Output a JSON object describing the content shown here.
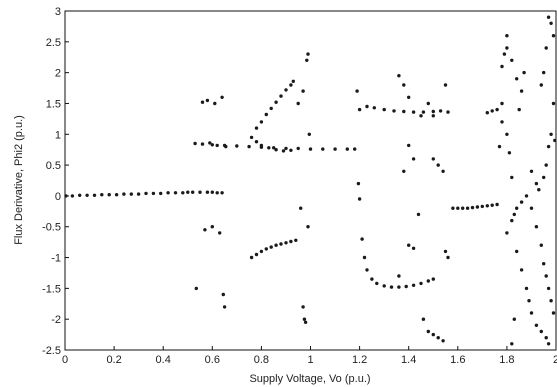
{
  "chart_data": {
    "type": "scatter",
    "title": "",
    "xlabel": "Supply Voltage, Vo (p.u.)",
    "ylabel": "Flux Derivative, Phi2 (p.u.)",
    "xlim": [
      0,
      2
    ],
    "ylim": [
      -2.5,
      3
    ],
    "grid": false,
    "x_ticks": [
      0,
      0.2,
      0.4,
      0.6,
      0.8,
      1,
      1.2,
      1.4,
      1.6,
      1.8,
      2
    ],
    "x_tick_labels": [
      "0",
      "0.2",
      "0.4",
      "0.6",
      "0.8",
      "1",
      "1.2",
      "1.4",
      "1.6",
      "1.8",
      "2"
    ],
    "y_ticks": [
      -2.5,
      -2,
      -1.5,
      -1,
      -0.5,
      0,
      0.5,
      1,
      1.5,
      2,
      2.5,
      3
    ],
    "y_tick_labels": [
      "-2.5",
      "-2",
      "-1.5",
      "-1",
      "-0.5",
      "0",
      "0.5",
      "1",
      "1.5",
      "2",
      "2.5",
      "3"
    ],
    "marker_color": "#1a1a1a",
    "series": [
      {
        "values_note": "",
        "points": [
          [
            0.0,
            0.0
          ],
          [
            0.03,
            0.0
          ],
          [
            0.06,
            0.01
          ],
          [
            0.09,
            0.01
          ],
          [
            0.12,
            0.01
          ],
          [
            0.15,
            0.02
          ],
          [
            0.18,
            0.02
          ],
          [
            0.21,
            0.02
          ],
          [
            0.24,
            0.03
          ],
          [
            0.27,
            0.03
          ],
          [
            0.3,
            0.03
          ],
          [
            0.33,
            0.04
          ],
          [
            0.36,
            0.04
          ],
          [
            0.39,
            0.04
          ],
          [
            0.42,
            0.05
          ],
          [
            0.45,
            0.05
          ],
          [
            0.48,
            0.05
          ],
          [
            0.5,
            0.06
          ],
          [
            0.52,
            0.06
          ],
          [
            0.55,
            0.06
          ],
          [
            0.58,
            0.06
          ],
          [
            0.6,
            0.06
          ],
          [
            0.62,
            0.05
          ],
          [
            0.64,
            0.05
          ],
          [
            0.535,
            -1.5
          ],
          [
            0.56,
            1.52
          ],
          [
            0.57,
            -0.55
          ],
          [
            0.58,
            1.55
          ],
          [
            0.59,
            0.86
          ],
          [
            0.6,
            -0.5
          ],
          [
            0.61,
            1.5
          ],
          [
            0.62,
            0.82
          ],
          [
            0.63,
            -0.6
          ],
          [
            0.64,
            1.6
          ],
          [
            0.645,
            -1.6
          ],
          [
            0.65,
            -1.8
          ],
          [
            0.655,
            0.8
          ],
          [
            0.53,
            0.85
          ],
          [
            0.56,
            0.84
          ],
          [
            0.6,
            0.83
          ],
          [
            0.65,
            0.82
          ],
          [
            0.7,
            0.81
          ],
          [
            0.75,
            0.8
          ],
          [
            0.8,
            0.79
          ],
          [
            0.85,
            0.78
          ],
          [
            0.9,
            0.77
          ],
          [
            0.95,
            0.77
          ],
          [
            1.0,
            0.76
          ],
          [
            1.05,
            0.76
          ],
          [
            1.1,
            0.76
          ],
          [
            1.15,
            0.76
          ],
          [
            1.18,
            0.76
          ],
          [
            0.76,
            0.95
          ],
          [
            0.78,
            1.1
          ],
          [
            0.8,
            1.2
          ],
          [
            0.82,
            1.32
          ],
          [
            0.84,
            1.42
          ],
          [
            0.86,
            1.52
          ],
          [
            0.88,
            1.62
          ],
          [
            0.9,
            1.72
          ],
          [
            0.92,
            1.8
          ],
          [
            0.93,
            1.86
          ],
          [
            0.95,
            1.5
          ],
          [
            0.97,
            1.7
          ],
          [
            0.985,
            2.2
          ],
          [
            0.99,
            2.3
          ],
          [
            0.995,
            1.0
          ],
          [
            0.78,
            0.88
          ],
          [
            0.8,
            0.82
          ],
          [
            0.83,
            0.78
          ],
          [
            0.86,
            0.75
          ],
          [
            0.89,
            0.73
          ],
          [
            0.92,
            0.74
          ],
          [
            0.76,
            -1.0
          ],
          [
            0.78,
            -0.95
          ],
          [
            0.8,
            -0.9
          ],
          [
            0.82,
            -0.86
          ],
          [
            0.84,
            -0.83
          ],
          [
            0.86,
            -0.8
          ],
          [
            0.88,
            -0.78
          ],
          [
            0.9,
            -0.76
          ],
          [
            0.92,
            -0.74
          ],
          [
            0.94,
            -0.72
          ],
          [
            0.96,
            -0.2
          ],
          [
            0.97,
            -1.8
          ],
          [
            0.975,
            -2.0
          ],
          [
            0.98,
            -2.05
          ],
          [
            0.99,
            -0.5
          ],
          [
            1.19,
            1.7
          ],
          [
            1.195,
            0.2
          ],
          [
            1.2,
            -0.05
          ],
          [
            1.21,
            -0.7
          ],
          [
            1.22,
            -1.0
          ],
          [
            1.23,
            -1.2
          ],
          [
            1.25,
            -1.35
          ],
          [
            1.27,
            -1.42
          ],
          [
            1.3,
            -1.46
          ],
          [
            1.33,
            -1.48
          ],
          [
            1.36,
            -1.48
          ],
          [
            1.39,
            -1.47
          ],
          [
            1.42,
            -1.45
          ],
          [
            1.45,
            -1.42
          ],
          [
            1.48,
            -1.38
          ],
          [
            1.5,
            -1.35
          ],
          [
            1.2,
            1.4
          ],
          [
            1.23,
            1.45
          ],
          [
            1.26,
            1.43
          ],
          [
            1.3,
            1.4
          ],
          [
            1.34,
            1.38
          ],
          [
            1.38,
            1.37
          ],
          [
            1.42,
            1.36
          ],
          [
            1.46,
            1.36
          ],
          [
            1.5,
            1.37
          ],
          [
            1.53,
            1.38
          ],
          [
            1.56,
            1.36
          ],
          [
            1.36,
            1.95
          ],
          [
            1.38,
            1.8
          ],
          [
            1.4,
            1.6
          ],
          [
            1.4,
            0.82
          ],
          [
            1.42,
            0.6
          ],
          [
            1.38,
            0.4
          ],
          [
            1.36,
            -1.3
          ],
          [
            1.4,
            -0.8
          ],
          [
            1.42,
            -0.85
          ],
          [
            1.44,
            -0.3
          ],
          [
            1.46,
            -2.0
          ],
          [
            1.48,
            -2.2
          ],
          [
            1.5,
            -2.25
          ],
          [
            1.52,
            -2.3
          ],
          [
            1.54,
            -2.35
          ],
          [
            1.45,
            1.3
          ],
          [
            1.48,
            1.5
          ],
          [
            1.5,
            1.3
          ],
          [
            1.5,
            0.6
          ],
          [
            1.52,
            0.5
          ],
          [
            1.54,
            0.4
          ],
          [
            1.55,
            1.8
          ],
          [
            1.55,
            -0.9
          ],
          [
            1.56,
            -1.0
          ],
          [
            1.58,
            -0.2
          ],
          [
            1.6,
            -0.2
          ],
          [
            1.62,
            -0.2
          ],
          [
            1.64,
            -0.2
          ],
          [
            1.66,
            -0.19
          ],
          [
            1.68,
            -0.18
          ],
          [
            1.7,
            -0.17
          ],
          [
            1.72,
            -0.16
          ],
          [
            1.74,
            -0.15
          ],
          [
            1.76,
            -0.14
          ],
          [
            1.72,
            1.35
          ],
          [
            1.74,
            1.38
          ],
          [
            1.76,
            1.4
          ],
          [
            1.78,
            1.5
          ],
          [
            1.78,
            2.1
          ],
          [
            1.79,
            2.3
          ],
          [
            1.8,
            2.4
          ],
          [
            1.8,
            2.6
          ],
          [
            1.82,
            2.2
          ],
          [
            1.84,
            1.9
          ],
          [
            1.86,
            1.7
          ],
          [
            1.8,
            -0.6
          ],
          [
            1.82,
            -0.4
          ],
          [
            1.83,
            -0.3
          ],
          [
            1.84,
            -0.2
          ],
          [
            1.86,
            -0.1
          ],
          [
            1.88,
            0.0
          ],
          [
            1.9,
            -0.2
          ],
          [
            1.92,
            -0.5
          ],
          [
            1.94,
            -0.8
          ],
          [
            1.95,
            -1.1
          ],
          [
            1.96,
            -1.3
          ],
          [
            1.97,
            -1.5
          ],
          [
            1.98,
            -1.7
          ],
          [
            1.99,
            -1.9
          ],
          [
            1.8,
            1.0
          ],
          [
            1.81,
            0.7
          ],
          [
            1.82,
            0.3
          ],
          [
            1.84,
            -0.9
          ],
          [
            1.86,
            -1.2
          ],
          [
            1.88,
            -1.5
          ],
          [
            1.89,
            -1.7
          ],
          [
            1.9,
            -1.9
          ],
          [
            1.92,
            -2.1
          ],
          [
            1.94,
            -2.2
          ],
          [
            1.96,
            -2.3
          ],
          [
            1.97,
            -2.4
          ],
          [
            1.78,
            1.2
          ],
          [
            1.77,
            0.8
          ],
          [
            1.82,
            -2.4
          ],
          [
            1.83,
            -2.0
          ],
          [
            1.85,
            1.4
          ],
          [
            1.87,
            2.0
          ],
          [
            1.9,
            0.4
          ],
          [
            1.92,
            0.2
          ],
          [
            1.93,
            0.1
          ],
          [
            1.95,
            0.3
          ],
          [
            1.96,
            0.5
          ],
          [
            1.97,
            0.8
          ],
          [
            1.98,
            1.0
          ],
          [
            1.99,
            2.6
          ],
          [
            1.98,
            2.8
          ],
          [
            1.97,
            2.9
          ],
          [
            1.96,
            2.4
          ],
          [
            1.95,
            2.0
          ],
          [
            1.94,
            1.8
          ],
          [
            1.99,
            1.5
          ],
          [
            1.995,
            0.9
          ]
        ]
      }
    ]
  }
}
